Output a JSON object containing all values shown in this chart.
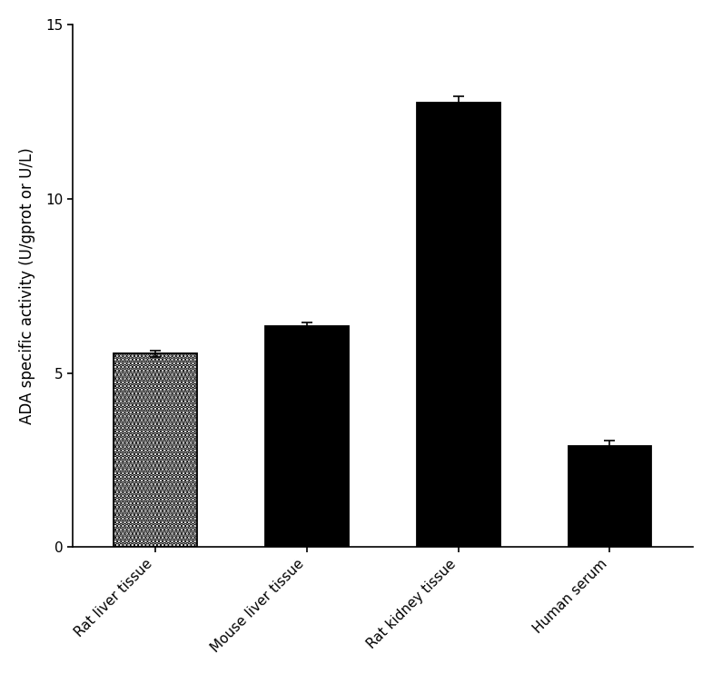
{
  "categories": [
    "Rat liver tissue",
    "Mouse liver tissue",
    "Rat kidney tissue",
    "Human serum"
  ],
  "values": [
    5.55,
    6.35,
    12.75,
    2.9
  ],
  "errors": [
    0.08,
    0.1,
    0.2,
    0.15
  ],
  "bar_color": "#ffffff",
  "edge_color": "#000000",
  "ylabel": "ADA specific activity (U/gprot or U/L)",
  "ylim": [
    0,
    15
  ],
  "yticks": [
    0,
    5,
    10,
    15
  ],
  "bar_width": 0.55,
  "background_color": "#ffffff",
  "ylabel_fontsize": 12,
  "tick_fontsize": 11,
  "xlabel_rotation": 45,
  "hatch_patterns": [
    "....",
    "-----",
    "////\\\\\\\\",
    "\\\\\\\\\\\\\\\\"
  ],
  "hatch_linewidths": [
    1.0,
    1.0,
    1.0,
    2.5
  ]
}
